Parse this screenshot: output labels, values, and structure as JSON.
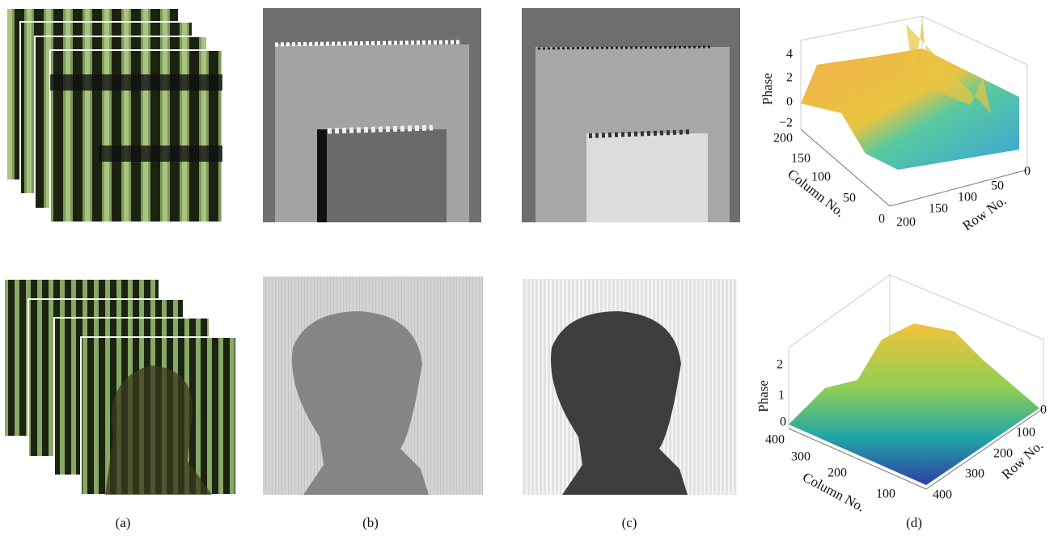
{
  "panels": [
    {
      "label": "(a)"
    },
    {
      "label": "(b)"
    },
    {
      "label": "(c)"
    },
    {
      "label": "(d)"
    }
  ],
  "plots": [
    {
      "z_label": "Phase",
      "column_label": "Column No.",
      "row_label": "Row No.",
      "z_ticks": [
        "4",
        "2",
        "0",
        "−2"
      ],
      "column_ticks": [
        "200",
        "150",
        "100",
        "50",
        "0"
      ],
      "row_ticks": [
        "200",
        "150",
        "100",
        "50",
        "0"
      ]
    },
    {
      "z_label": "Phase",
      "column_label": "Column No.",
      "row_label": "Row No.",
      "z_ticks": [
        "2",
        "1",
        "0"
      ],
      "column_ticks": [
        "400",
        "300",
        "200",
        "100"
      ],
      "row_ticks": [
        "0",
        "100",
        "200",
        "300",
        "400"
      ]
    }
  ]
}
